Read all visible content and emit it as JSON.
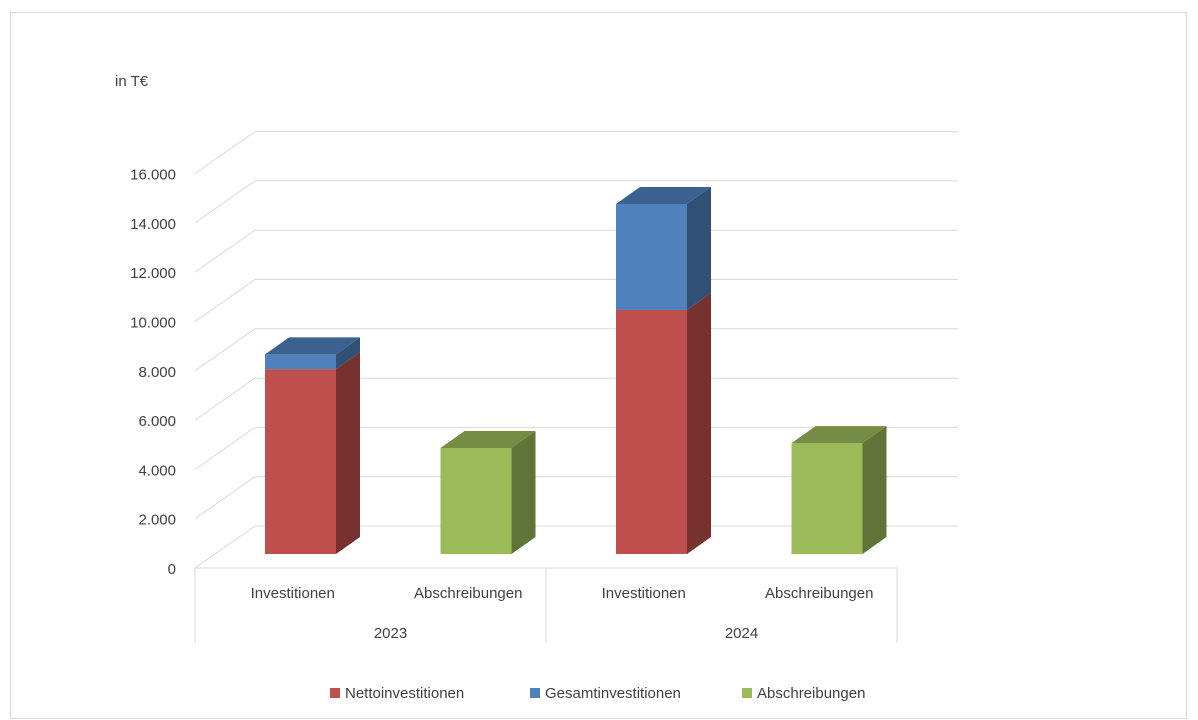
{
  "chart_data": {
    "type": "bar",
    "stacked": true,
    "three_d": true,
    "unit_label": "in T€",
    "groups": [
      "2023",
      "2024"
    ],
    "categories": [
      "Investitionen",
      "Abschreibungen",
      "Investitionen",
      "Abschreibungen"
    ],
    "category_group": [
      "2023",
      "2023",
      "2024",
      "2024"
    ],
    "series": [
      {
        "name": "Nettoinvestitionen",
        "color": "#c0504d",
        "values": [
          7500,
          0,
          9900,
          0
        ]
      },
      {
        "name": "Gesamtinvestitionen",
        "color": "#4f81bd",
        "values": [
          600,
          0,
          4300,
          0
        ]
      },
      {
        "name": "Abschreibungen",
        "color": "#9bbb59",
        "values": [
          0,
          4300,
          0,
          4500
        ]
      }
    ],
    "ylim": [
      0,
      16000
    ],
    "yticks": [
      0,
      2000,
      4000,
      6000,
      8000,
      10000,
      12000,
      14000,
      16000
    ],
    "ytick_labels": [
      "0",
      "2.000",
      "4.000",
      "6.000",
      "8.000",
      "10.000",
      "12.000",
      "14.000",
      "16.000"
    ],
    "grid": true,
    "legend_position": "bottom"
  }
}
